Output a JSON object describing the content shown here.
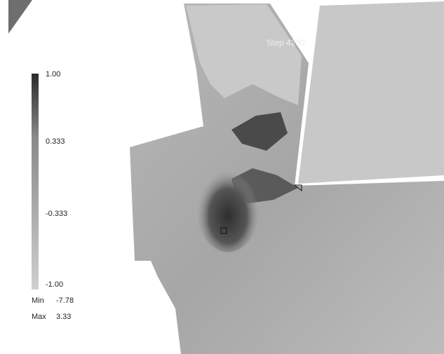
{
  "step_label": "Step 4280",
  "legend": {
    "ticks": [
      "1.00",
      "0.333",
      "-0.333",
      "-1.00"
    ],
    "min": {
      "label": "Min",
      "value": "-7.78"
    },
    "max": {
      "label": "Max",
      "value": "3.33"
    }
  }
}
